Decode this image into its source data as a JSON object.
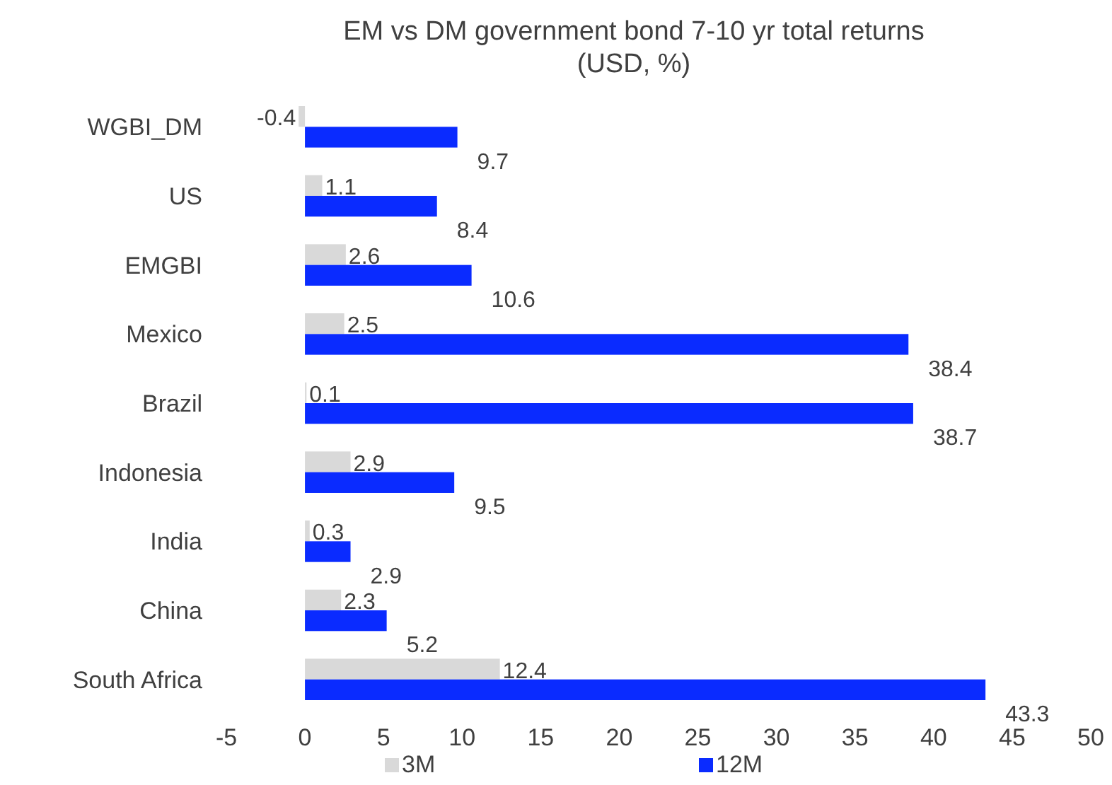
{
  "chart_data": {
    "type": "bar",
    "orientation": "horizontal",
    "title": "EM vs DM government bond 7-10 yr total returns\n(USD, %)",
    "categories": [
      "WGBI_DM",
      "US",
      "EMGBI",
      "Mexico",
      "Brazil",
      "Indonesia",
      "India",
      "China",
      "South Africa"
    ],
    "series": [
      {
        "name": "3M",
        "color": "#d9d9d9",
        "values": [
          -0.4,
          1.1,
          2.6,
          2.5,
          0.1,
          2.9,
          0.3,
          2.3,
          12.4
        ]
      },
      {
        "name": "12M",
        "color": "#0a2bff",
        "values": [
          9.7,
          8.4,
          10.6,
          38.4,
          38.7,
          9.5,
          2.9,
          5.2,
          43.3
        ]
      }
    ],
    "xlim": [
      -5,
      50
    ],
    "xticks": [
      -5,
      0,
      5,
      10,
      15,
      20,
      25,
      30,
      35,
      40,
      45,
      50
    ],
    "data_labels": true,
    "legend": "bottom",
    "grid": false
  }
}
